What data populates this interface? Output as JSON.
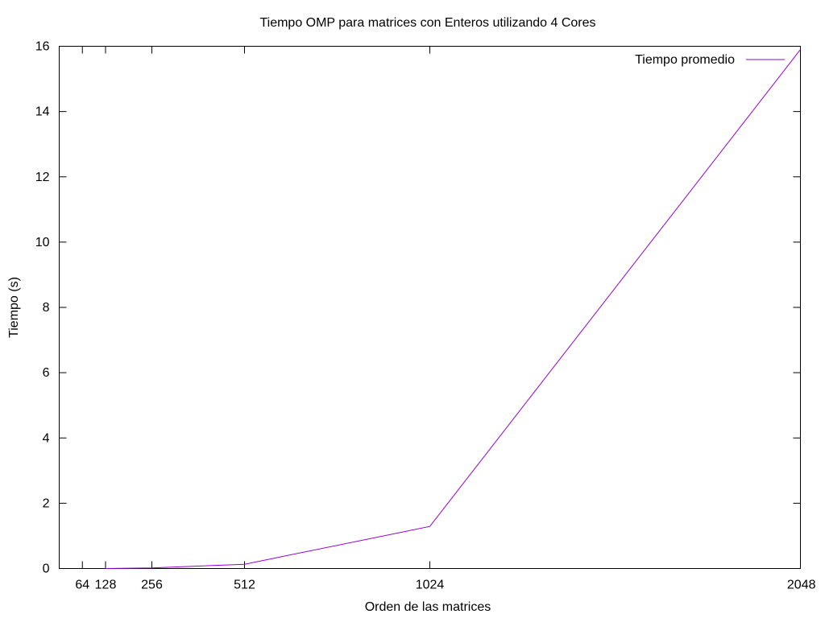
{
  "chart_data": {
    "type": "line",
    "title": "Tiempo OMP para matrices con Enteros utilizando 4 Cores",
    "xlabel": "Orden de las matrices",
    "ylabel": "Tiempo (s)",
    "xlim": [
      0,
      2048
    ],
    "ylim": [
      0,
      16
    ],
    "x_ticks": [
      64,
      128,
      256,
      512,
      1024,
      2048
    ],
    "y_ticks": [
      0,
      2,
      4,
      6,
      8,
      10,
      12,
      14,
      16
    ],
    "grid": false,
    "legend_position": "top-right",
    "series": [
      {
        "name": "Tiempo promedio",
        "color": "#9400d3",
        "x": [
          128,
          256,
          512,
          1024,
          2048
        ],
        "y": [
          0.0,
          0.02,
          0.13,
          1.29,
          15.9
        ]
      }
    ]
  }
}
